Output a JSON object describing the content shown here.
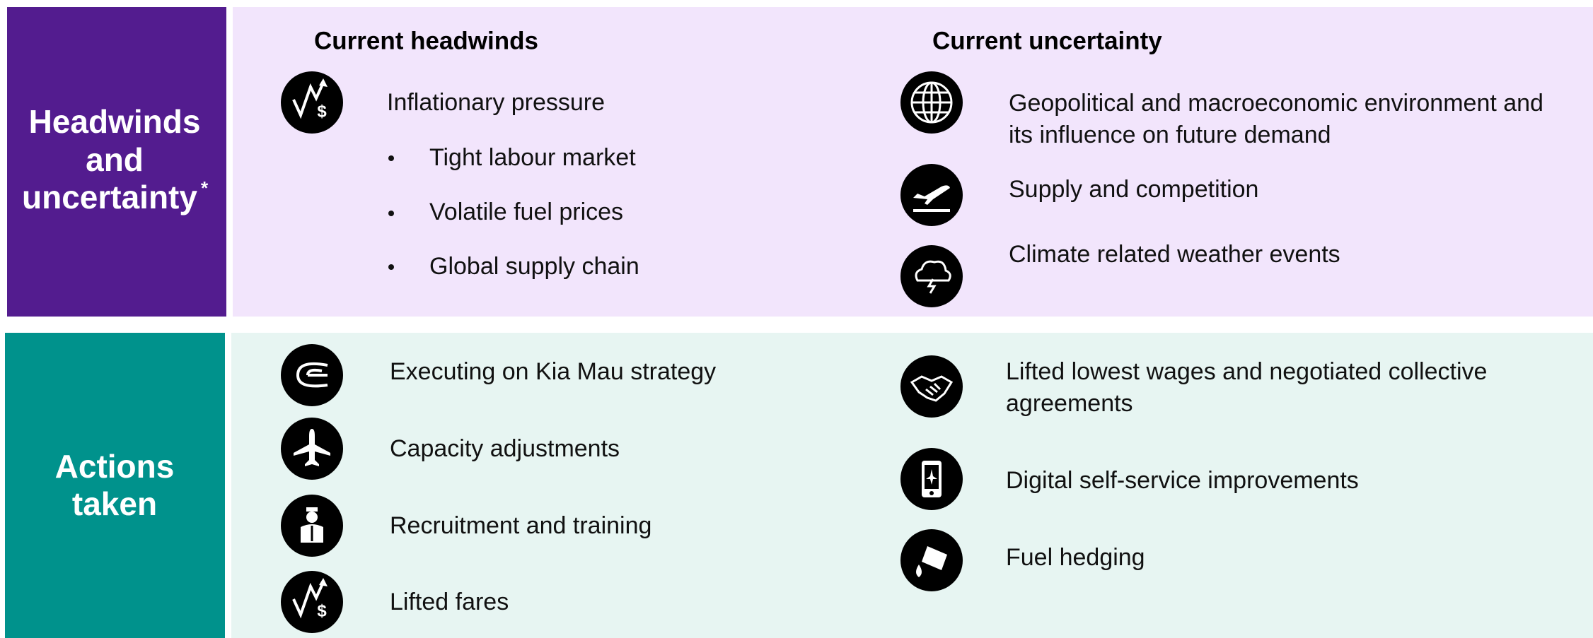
{
  "headwinds_section": {
    "title_lines": [
      "Headwinds",
      "and",
      "uncertainty"
    ],
    "title_marker": "*",
    "headwinds_heading": "Current headwinds",
    "uncertainty_heading": "Current uncertainty",
    "headwinds_main": "Inflationary pressure",
    "headwinds_bullets": [
      "Tight labour market",
      "Volatile fuel prices",
      "Global supply chain"
    ],
    "uncertainty_items": [
      [
        "Geopolitical and macroeconomic environment and",
        "its influence on future demand"
      ],
      [
        "Supply and competition"
      ],
      [
        "Climate related weather events"
      ]
    ]
  },
  "actions_section": {
    "title_lines": [
      "Actions",
      "taken"
    ],
    "left_items": [
      "Executing on Kia Mau strategy",
      "Capacity adjustments",
      "Recruitment and training",
      "Lifted fares"
    ],
    "right_items": [
      [
        "Lifted lowest wages and negotiated collective",
        "agreements"
      ],
      [
        "Digital self-service improvements"
      ],
      [
        "Fuel hedging"
      ]
    ]
  }
}
